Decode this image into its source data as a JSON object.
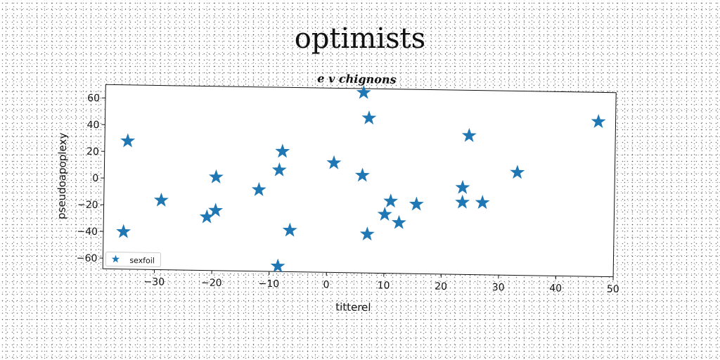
{
  "page": {
    "title": "optimists"
  },
  "chart_data": {
    "type": "scatter",
    "title": "e v chignons",
    "xlabel": "titterel",
    "ylabel": "pseudoapoplexy",
    "xlim": [
      -39,
      50
    ],
    "ylim": [
      -68,
      70
    ],
    "xticks": [
      -30,
      -20,
      -10,
      0,
      10,
      20,
      30,
      40,
      50
    ],
    "yticks": [
      -60,
      -40,
      -20,
      0,
      20,
      40,
      60
    ],
    "grid": false,
    "legend_position": "lower-left",
    "series": [
      {
        "name": "sexfoil",
        "marker": "star",
        "color": "#1f77b4",
        "points": [
          [
            -35,
            28
          ],
          [
            -35.5,
            -40
          ],
          [
            -29,
            -16
          ],
          [
            -21,
            -28
          ],
          [
            -19.5,
            -23
          ],
          [
            -19.5,
            2
          ],
          [
            -12,
            -7
          ],
          [
            -8.5,
            8
          ],
          [
            -8,
            22
          ],
          [
            -6.5,
            -37
          ],
          [
            -8.5,
            -64
          ],
          [
            1,
            14
          ],
          [
            6,
            67
          ],
          [
            7,
            48
          ],
          [
            6,
            5
          ],
          [
            7,
            -39
          ],
          [
            10,
            -24
          ],
          [
            11,
            -14
          ],
          [
            12.5,
            -30
          ],
          [
            15.5,
            -16
          ],
          [
            23.5,
            -3
          ],
          [
            23.5,
            -14
          ],
          [
            24.5,
            36
          ],
          [
            27,
            -14
          ],
          [
            33,
            9
          ],
          [
            47,
            48
          ]
        ]
      }
    ]
  }
}
